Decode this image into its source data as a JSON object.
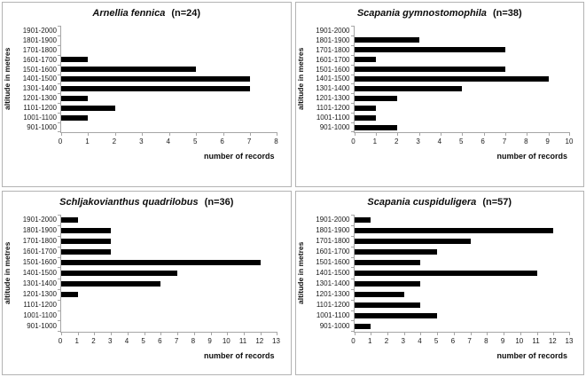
{
  "colors": {
    "bar": "#000000",
    "axis": "#a6a6a6",
    "panel_border": "#b3b3b3",
    "text": "#1a1a1a",
    "background": "#ffffff"
  },
  "chart_data": [
    {
      "type": "bar",
      "orientation": "horizontal",
      "title": "Arnellia fennica (n=24)",
      "title_species": "Arnellia fennica",
      "title_n": "(n=24)",
      "xlabel": "number of records",
      "ylabel": "altitude in metres",
      "categories": [
        "1901-2000",
        "1801-1900",
        "1701-1800",
        "1601-1700",
        "1501-1600",
        "1401-1500",
        "1301-1400",
        "1201-1300",
        "1101-1200",
        "1001-1100",
        "901-1000"
      ],
      "values": [
        0,
        0,
        0,
        1,
        5,
        7,
        7,
        1,
        2,
        1,
        0
      ],
      "xlim": [
        0,
        8
      ],
      "xticks": [
        0,
        1,
        2,
        3,
        4,
        5,
        6,
        7,
        8
      ],
      "grid": false,
      "legend": false
    },
    {
      "type": "bar",
      "orientation": "horizontal",
      "title": "Scapania gymnostomophila (n=38)",
      "title_species": "Scapania gymnostomophila",
      "title_n": "(n=38)",
      "xlabel": "number of records",
      "ylabel": "altitude in metres",
      "categories": [
        "1901-2000",
        "1801-1900",
        "1701-1800",
        "1601-1700",
        "1501-1600",
        "1401-1500",
        "1301-1400",
        "1201-1300",
        "1101-1200",
        "1001-1100",
        "901-1000"
      ],
      "values": [
        0,
        3,
        7,
        1,
        7,
        9,
        5,
        2,
        1,
        1,
        2
      ],
      "xlim": [
        0,
        10
      ],
      "xticks": [
        0,
        1,
        2,
        3,
        4,
        5,
        6,
        7,
        8,
        9,
        10
      ],
      "grid": false,
      "legend": false
    },
    {
      "type": "bar",
      "orientation": "horizontal",
      "title": "Schljakovianthus quadrilobus (n=36)",
      "title_species": "Schljakovianthus quadrilobus",
      "title_n": "(n=36)",
      "xlabel": "number of records",
      "ylabel": "altitude in metres",
      "categories": [
        "1901-2000",
        "1801-1900",
        "1701-1800",
        "1601-1700",
        "1501-1600",
        "1401-1500",
        "1301-1400",
        "1201-1300",
        "1101-1200",
        "1001-1100",
        "901-1000"
      ],
      "values": [
        1,
        3,
        3,
        3,
        12,
        7,
        6,
        1,
        0,
        0,
        0
      ],
      "xlim": [
        0,
        13
      ],
      "xticks": [
        0,
        1,
        2,
        3,
        4,
        5,
        6,
        7,
        8,
        9,
        10,
        11,
        12,
        13
      ],
      "grid": false,
      "legend": false
    },
    {
      "type": "bar",
      "orientation": "horizontal",
      "title": "Scapania cuspiduligera (n=57)",
      "title_species": "Scapania cuspiduligera",
      "title_n": "(n=57)",
      "xlabel": "number of records",
      "ylabel": "altitude in metres",
      "categories": [
        "1901-2000",
        "1801-1900",
        "1701-1800",
        "1601-1700",
        "1501-1600",
        "1401-1500",
        "1301-1400",
        "1201-1300",
        "1101-1200",
        "1001-1100",
        "901-1000"
      ],
      "values": [
        1,
        12,
        7,
        5,
        4,
        11,
        4,
        3,
        4,
        5,
        1
      ],
      "xlim": [
        0,
        13
      ],
      "xticks": [
        0,
        1,
        2,
        3,
        4,
        5,
        6,
        7,
        8,
        9,
        10,
        11,
        12,
        13
      ],
      "grid": false,
      "legend": false
    }
  ]
}
